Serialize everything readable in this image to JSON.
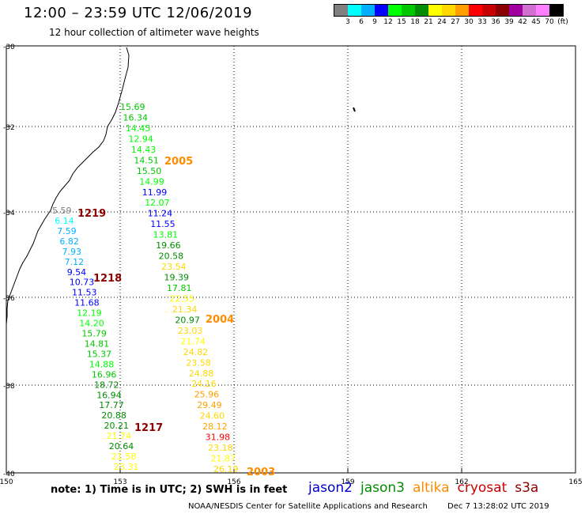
{
  "title": "12:00 – 23:59 UTC 12/06/2019",
  "subtitle": "12 hour collection of altimeter wave heights",
  "legend": {
    "colors": [
      "#808080",
      "#00ffff",
      "#00b0ff",
      "#0000ff",
      "#00ff00",
      "#00c800",
      "#008c00",
      "#ffff00",
      "#ffd700",
      "#ffa000",
      "#ff0000",
      "#c80000",
      "#8b0000",
      "#a000a0",
      "#d070d0",
      "#ff80ff",
      "#000000"
    ],
    "labels": [
      "3",
      "6",
      "9",
      "12",
      "15",
      "18",
      "21",
      "24",
      "27",
      "30",
      "33",
      "36",
      "39",
      "42",
      "45",
      "70",
      "(ft)"
    ]
  },
  "map": {
    "lat_labels": [
      "-30",
      "-32",
      "-34",
      "-36",
      "-38",
      "-40"
    ],
    "lon_labels": [
      "150",
      "153",
      "156",
      "159",
      "162",
      "165"
    ]
  },
  "annotations": [
    {
      "text": "2005",
      "color": "#ff8c00"
    },
    {
      "text": "1219",
      "color": "#8b0000"
    },
    {
      "text": "1218",
      "color": "#8b0000"
    },
    {
      "text": "2004",
      "color": "#ff8c00"
    },
    {
      "text": "1217",
      "color": "#8b0000"
    },
    {
      "text": "2003",
      "color": "#ff8c00"
    }
  ],
  "tracks": [
    {
      "name": "track-2005",
      "values": [
        "15.69",
        "16.34",
        "14.45",
        "12.94",
        "14.43",
        "14.51",
        "15.50",
        "14.99",
        "11.99",
        "12.07",
        "11.24",
        "11.55",
        "13.81",
        "19.66",
        "20.58",
        "23.54",
        "19.39",
        "17.81",
        "22.55",
        "21.34",
        "20.97",
        "23.03",
        "21.74",
        "24.82",
        "23.58",
        "24.88",
        "24.16",
        "25.96",
        "29.49",
        "24.60",
        "28.12",
        "31.98",
        "23.18",
        "21.87",
        "26.19"
      ],
      "colors": [
        "#00c800",
        "#00c800",
        "#00ff00",
        "#00ff00",
        "#00ff00",
        "#00c800",
        "#00c800",
        "#00ff00",
        "#0000ff",
        "#00ff00",
        "#0000ff",
        "#0000ff",
        "#00ff00",
        "#008c00",
        "#008c00",
        "#ffd700",
        "#008c00",
        "#00c800",
        "#ffff00",
        "#ffd700",
        "#008c00",
        "#ffd700",
        "#ffff00",
        "#ffd700",
        "#ffd700",
        "#ffd700",
        "#ffd700",
        "#ffa000",
        "#ffa000",
        "#ffd700",
        "#ffa000",
        "#ff0000",
        "#ffd700",
        "#ffff00",
        "#ffd700"
      ]
    },
    {
      "name": "track-1219",
      "values": [
        "5.59",
        "6.14",
        "7.59",
        "6.82",
        "7.93",
        "7.12",
        "9.54",
        "10.73",
        "11.53",
        "11.68",
        "12.19",
        "14.20",
        "15.79",
        "14.81",
        "15.37",
        "14.88",
        "16.96",
        "18.72",
        "16.94",
        "17.77",
        "20.88",
        "20.21",
        "21.74",
        "20.64",
        "21.58",
        "23.31"
      ],
      "colors": [
        "#808080",
        "#00ffff",
        "#00b0ff",
        "#00b0ff",
        "#00b0ff",
        "#00b0ff",
        "#0000ff",
        "#0000ff",
        "#0000ff",
        "#0000ff",
        "#00ff00",
        "#00ff00",
        "#00c800",
        "#00c800",
        "#00c800",
        "#00ff00",
        "#00c800",
        "#008c00",
        "#008c00",
        "#008c00",
        "#008c00",
        "#008c00",
        "#ffff00",
        "#008c00",
        "#ffff00",
        "#ffff00"
      ]
    }
  ],
  "note": "note: 1) Time is in UTC; 2) SWH is in feet",
  "satellites": [
    {
      "name": "jason2",
      "color": "#0000cc"
    },
    {
      "name": "jason3",
      "color": "#008c00"
    },
    {
      "name": "altika",
      "color": "#ff8c00"
    },
    {
      "name": "cryosat",
      "color": "#cc0000"
    },
    {
      "name": "s3a",
      "color": "#8b0000"
    }
  ],
  "footer": {
    "credit": "NOAA/NESDIS Center for Satellite Applications and Research",
    "timestamp": "Dec  7 13:28:02 UTC 2019"
  }
}
